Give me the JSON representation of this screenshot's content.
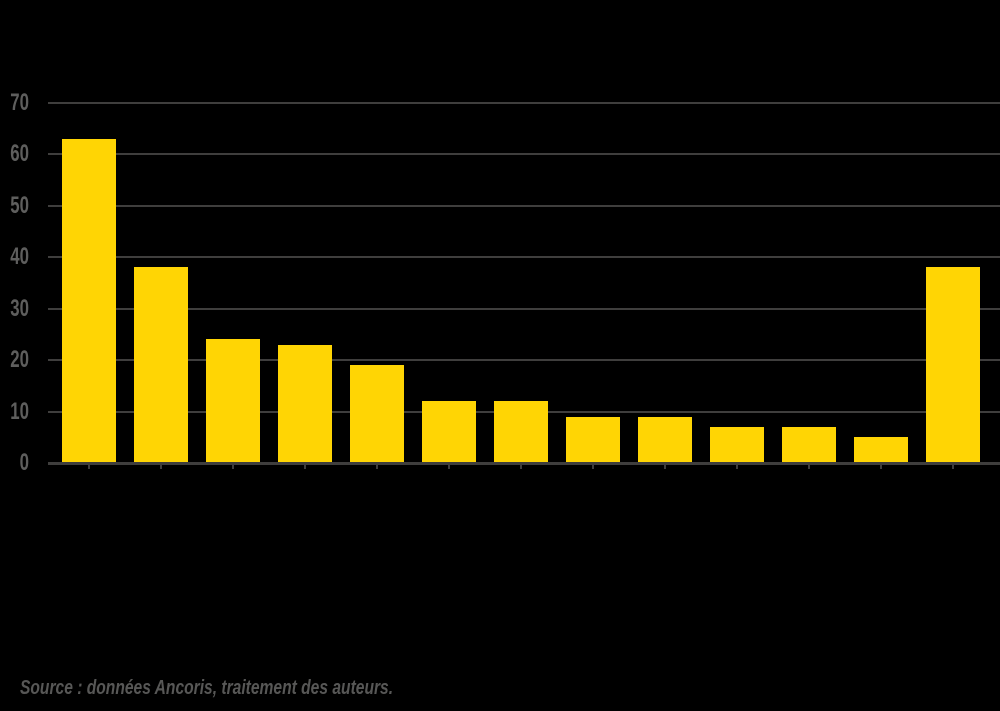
{
  "chart_data": {
    "type": "bar",
    "title": "",
    "categories": [
      "",
      "",
      "",
      "",
      "",
      "",
      "",
      "",
      "",
      "",
      "",
      "",
      ""
    ],
    "values": [
      63,
      38,
      24,
      23,
      19,
      12,
      12,
      9,
      9,
      7,
      7,
      5,
      38
    ],
    "xlabel": "",
    "ylabel": "",
    "ylim": [
      0,
      70
    ],
    "ytick_step": 10,
    "ytick_labels": [
      "0",
      "10",
      "20",
      "30",
      "40",
      "50",
      "60",
      "70"
    ],
    "grid": true,
    "legend": false,
    "colors": {
      "bar": "#FFD504",
      "grid": "#3F3E3D",
      "axis": "#3F3E3D",
      "tick_label": "#5E5E5D",
      "background": "#000000"
    }
  },
  "caption": {
    "text": "Source : données Ancoris, traitement des auteurs.",
    "color": "#575756"
  }
}
